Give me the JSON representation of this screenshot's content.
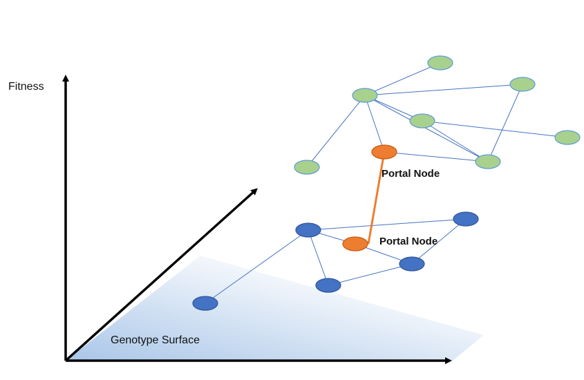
{
  "labels": {
    "fitness_axis": "Fitness",
    "genotype_surface": "Genotype Surface",
    "portal_node_top": "Portal Node",
    "portal_node_bottom": "Portal Node"
  },
  "colors": {
    "axis": "#000000",
    "edge": "#4472C4",
    "portal_link": "#ED7D31",
    "green_node_fill": "#A9D18E",
    "green_node_stroke": "#5B9BD5",
    "blue_node_fill": "#4472C4",
    "blue_node_stroke": "#2F5597",
    "portal_node_fill": "#ED7D31",
    "surface_gradient_start": "#A9C6E8",
    "surface_gradient_end": "#FFFFFF"
  }
}
